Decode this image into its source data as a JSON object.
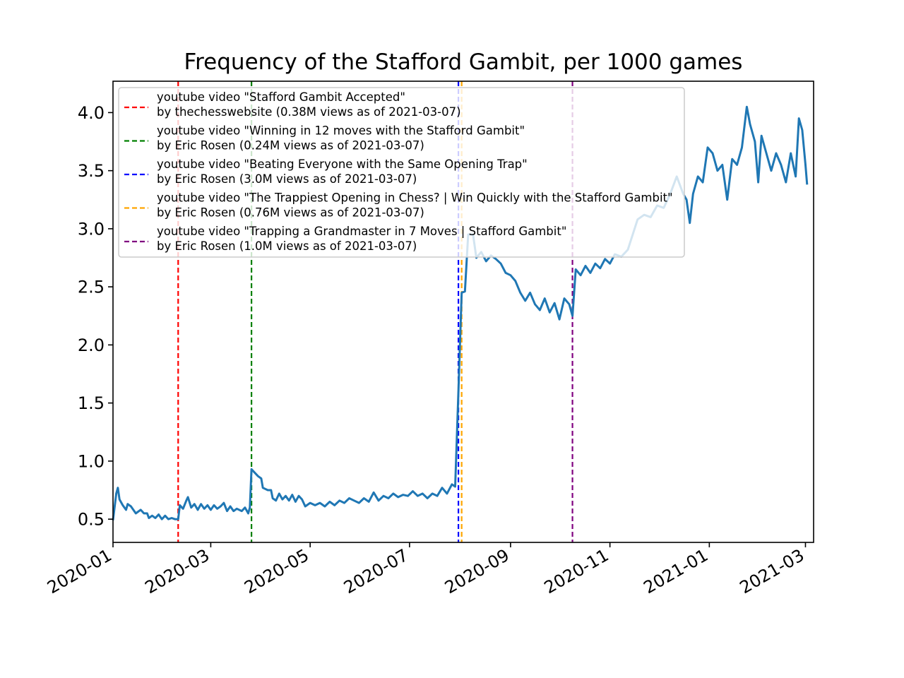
{
  "chart_data": {
    "type": "line",
    "title": "Frequency of the Stafford Gambit, per 1000 games",
    "xlabel": "",
    "ylabel": "",
    "xlim": [
      "2020-01-01",
      "2021-03-06"
    ],
    "ylim": [
      0.3,
      4.27
    ],
    "grid": false,
    "legend_position": "upper left",
    "x_ticks": [
      "2020-01",
      "2020-03",
      "2020-05",
      "2020-07",
      "2020-09",
      "2020-11",
      "2021-01",
      "2021-03"
    ],
    "y_ticks": [
      "0.5",
      "1.0",
      "1.5",
      "2.0",
      "2.5",
      "3.0",
      "3.5",
      "4.0"
    ],
    "series": [
      {
        "color": "#1f77b4",
        "points": [
          [
            "2020-01-01",
            0.49
          ],
          [
            "2020-01-03",
            0.72
          ],
          [
            "2020-01-04",
            0.77
          ],
          [
            "2020-01-05",
            0.67
          ],
          [
            "2020-01-07",
            0.62
          ],
          [
            "2020-01-09",
            0.58
          ],
          [
            "2020-01-10",
            0.63
          ],
          [
            "2020-01-12",
            0.61
          ],
          [
            "2020-01-15",
            0.55
          ],
          [
            "2020-01-18",
            0.58
          ],
          [
            "2020-01-20",
            0.55
          ],
          [
            "2020-01-22",
            0.55
          ],
          [
            "2020-01-23",
            0.51
          ],
          [
            "2020-01-25",
            0.53
          ],
          [
            "2020-01-27",
            0.51
          ],
          [
            "2020-01-29",
            0.54
          ],
          [
            "2020-01-31",
            0.5
          ],
          [
            "2020-02-02",
            0.53
          ],
          [
            "2020-02-04",
            0.5
          ],
          [
            "2020-02-06",
            0.51
          ],
          [
            "2020-02-08",
            0.5
          ],
          [
            "2020-02-10",
            0.5
          ],
          [
            "2020-02-11",
            0.62
          ],
          [
            "2020-02-13",
            0.59
          ],
          [
            "2020-02-15",
            0.66
          ],
          [
            "2020-02-16",
            0.69
          ],
          [
            "2020-02-18",
            0.6
          ],
          [
            "2020-02-20",
            0.63
          ],
          [
            "2020-02-22",
            0.58
          ],
          [
            "2020-02-24",
            0.63
          ],
          [
            "2020-02-26",
            0.59
          ],
          [
            "2020-02-28",
            0.62
          ],
          [
            "2020-03-01",
            0.58
          ],
          [
            "2020-03-03",
            0.62
          ],
          [
            "2020-03-05",
            0.59
          ],
          [
            "2020-03-07",
            0.61
          ],
          [
            "2020-03-09",
            0.64
          ],
          [
            "2020-03-11",
            0.57
          ],
          [
            "2020-03-13",
            0.61
          ],
          [
            "2020-03-15",
            0.57
          ],
          [
            "2020-03-17",
            0.59
          ],
          [
            "2020-03-20",
            0.57
          ],
          [
            "2020-03-22",
            0.6
          ],
          [
            "2020-03-24",
            0.55
          ],
          [
            "2020-03-25",
            0.6
          ],
          [
            "2020-03-26",
            0.93
          ],
          [
            "2020-03-28",
            0.9
          ],
          [
            "2020-03-30",
            0.87
          ],
          [
            "2020-04-01",
            0.85
          ],
          [
            "2020-04-02",
            0.77
          ],
          [
            "2020-04-05",
            0.75
          ],
          [
            "2020-04-07",
            0.75
          ],
          [
            "2020-04-08",
            0.68
          ],
          [
            "2020-04-10",
            0.66
          ],
          [
            "2020-04-12",
            0.72
          ],
          [
            "2020-04-14",
            0.67
          ],
          [
            "2020-04-16",
            0.7
          ],
          [
            "2020-04-18",
            0.66
          ],
          [
            "2020-04-20",
            0.71
          ],
          [
            "2020-04-22",
            0.65
          ],
          [
            "2020-04-24",
            0.7
          ],
          [
            "2020-04-26",
            0.67
          ],
          [
            "2020-04-28",
            0.61
          ],
          [
            "2020-05-01",
            0.64
          ],
          [
            "2020-05-04",
            0.62
          ],
          [
            "2020-05-07",
            0.64
          ],
          [
            "2020-05-10",
            0.61
          ],
          [
            "2020-05-13",
            0.65
          ],
          [
            "2020-05-16",
            0.62
          ],
          [
            "2020-05-19",
            0.66
          ],
          [
            "2020-05-22",
            0.64
          ],
          [
            "2020-05-25",
            0.68
          ],
          [
            "2020-05-28",
            0.66
          ],
          [
            "2020-05-31",
            0.64
          ],
          [
            "2020-06-03",
            0.68
          ],
          [
            "2020-06-06",
            0.65
          ],
          [
            "2020-06-09",
            0.73
          ],
          [
            "2020-06-12",
            0.66
          ],
          [
            "2020-06-15",
            0.7
          ],
          [
            "2020-06-18",
            0.68
          ],
          [
            "2020-06-21",
            0.72
          ],
          [
            "2020-06-24",
            0.69
          ],
          [
            "2020-06-27",
            0.71
          ],
          [
            "2020-06-30",
            0.7
          ],
          [
            "2020-07-03",
            0.74
          ],
          [
            "2020-07-06",
            0.7
          ],
          [
            "2020-07-09",
            0.72
          ],
          [
            "2020-07-12",
            0.68
          ],
          [
            "2020-07-15",
            0.72
          ],
          [
            "2020-07-18",
            0.7
          ],
          [
            "2020-07-21",
            0.77
          ],
          [
            "2020-07-24",
            0.72
          ],
          [
            "2020-07-27",
            0.8
          ],
          [
            "2020-07-29",
            0.78
          ],
          [
            "2020-07-31",
            1.6
          ],
          [
            "2020-08-02",
            2.45
          ],
          [
            "2020-08-04",
            2.46
          ],
          [
            "2020-08-06",
            2.95
          ],
          [
            "2020-08-09",
            2.95
          ],
          [
            "2020-08-11",
            2.75
          ],
          [
            "2020-08-14",
            2.8
          ],
          [
            "2020-08-17",
            2.72
          ],
          [
            "2020-08-20",
            2.77
          ],
          [
            "2020-08-23",
            2.74
          ],
          [
            "2020-08-26",
            2.7
          ],
          [
            "2020-08-29",
            2.62
          ],
          [
            "2020-09-01",
            2.6
          ],
          [
            "2020-09-04",
            2.55
          ],
          [
            "2020-09-07",
            2.45
          ],
          [
            "2020-09-10",
            2.38
          ],
          [
            "2020-09-13",
            2.45
          ],
          [
            "2020-09-16",
            2.35
          ],
          [
            "2020-09-19",
            2.3
          ],
          [
            "2020-09-22",
            2.4
          ],
          [
            "2020-09-25",
            2.28
          ],
          [
            "2020-09-28",
            2.36
          ],
          [
            "2020-10-01",
            2.22
          ],
          [
            "2020-10-04",
            2.4
          ],
          [
            "2020-10-07",
            2.35
          ],
          [
            "2020-10-09",
            2.25
          ],
          [
            "2020-10-11",
            2.65
          ],
          [
            "2020-10-14",
            2.6
          ],
          [
            "2020-10-17",
            2.68
          ],
          [
            "2020-10-20",
            2.62
          ],
          [
            "2020-10-23",
            2.7
          ],
          [
            "2020-10-26",
            2.66
          ],
          [
            "2020-10-29",
            2.74
          ],
          [
            "2020-11-01",
            2.7
          ],
          [
            "2020-11-04",
            2.78
          ],
          [
            "2020-11-08",
            2.76
          ],
          [
            "2020-11-12",
            2.82
          ],
          [
            "2020-11-15",
            2.95
          ],
          [
            "2020-11-18",
            3.08
          ],
          [
            "2020-11-22",
            3.12
          ],
          [
            "2020-11-26",
            3.1
          ],
          [
            "2020-11-30",
            3.2
          ],
          [
            "2020-12-04",
            3.18
          ],
          [
            "2020-12-08",
            3.3
          ],
          [
            "2020-12-12",
            3.45
          ],
          [
            "2020-12-16",
            3.3
          ],
          [
            "2020-12-18",
            3.25
          ],
          [
            "2020-12-20",
            3.05
          ],
          [
            "2020-12-22",
            3.3
          ],
          [
            "2020-12-25",
            3.45
          ],
          [
            "2020-12-28",
            3.4
          ],
          [
            "2020-12-31",
            3.7
          ],
          [
            "2021-01-03",
            3.65
          ],
          [
            "2021-01-06",
            3.5
          ],
          [
            "2021-01-09",
            3.55
          ],
          [
            "2021-01-12",
            3.25
          ],
          [
            "2021-01-15",
            3.6
          ],
          [
            "2021-01-18",
            3.55
          ],
          [
            "2021-01-21",
            3.7
          ],
          [
            "2021-01-24",
            4.05
          ],
          [
            "2021-01-26",
            3.9
          ],
          [
            "2021-01-29",
            3.75
          ],
          [
            "2021-01-31",
            3.4
          ],
          [
            "2021-02-02",
            3.8
          ],
          [
            "2021-02-05",
            3.65
          ],
          [
            "2021-02-08",
            3.5
          ],
          [
            "2021-02-11",
            3.65
          ],
          [
            "2021-02-14",
            3.55
          ],
          [
            "2021-02-17",
            3.4
          ],
          [
            "2021-02-20",
            3.65
          ],
          [
            "2021-02-23",
            3.45
          ],
          [
            "2021-02-25",
            3.95
          ],
          [
            "2021-02-27",
            3.85
          ],
          [
            "2021-03-01",
            3.55
          ],
          [
            "2021-03-02",
            3.38
          ]
        ]
      }
    ],
    "vlines": [
      {
        "date": "2020-02-10",
        "color": "#ff0000",
        "line1": "youtube video \"Stafford Gambit Accepted\"",
        "line2": "by thechesswebsite (0.38M views as of 2021-03-07)"
      },
      {
        "date": "2020-03-26",
        "color": "#008000",
        "line1": "youtube video \"Winning in 12 moves with the Stafford Gambit\"",
        "line2": "by Eric Rosen (0.24M views as of 2021-03-07)"
      },
      {
        "date": "2020-07-31",
        "color": "#0000ff",
        "line1": "youtube video \"Beating Everyone with the Same Opening Trap\"",
        "line2": "by Eric Rosen (3.0M views as of 2021-03-07)"
      },
      {
        "date": "2020-08-02",
        "color": "#ffa500",
        "line1": "youtube video \"The Trappiest Opening in Chess? | Win Quickly with the Stafford Gambit\"",
        "line2": "by Eric Rosen (0.76M views as of 2021-03-07)"
      },
      {
        "date": "2020-10-09",
        "color": "#800080",
        "line1": "youtube video \"Trapping a Grandmaster in 7 Moves | Stafford Gambit\"",
        "line2": "by Eric Rosen (1.0M views as of 2021-03-07)"
      }
    ]
  }
}
